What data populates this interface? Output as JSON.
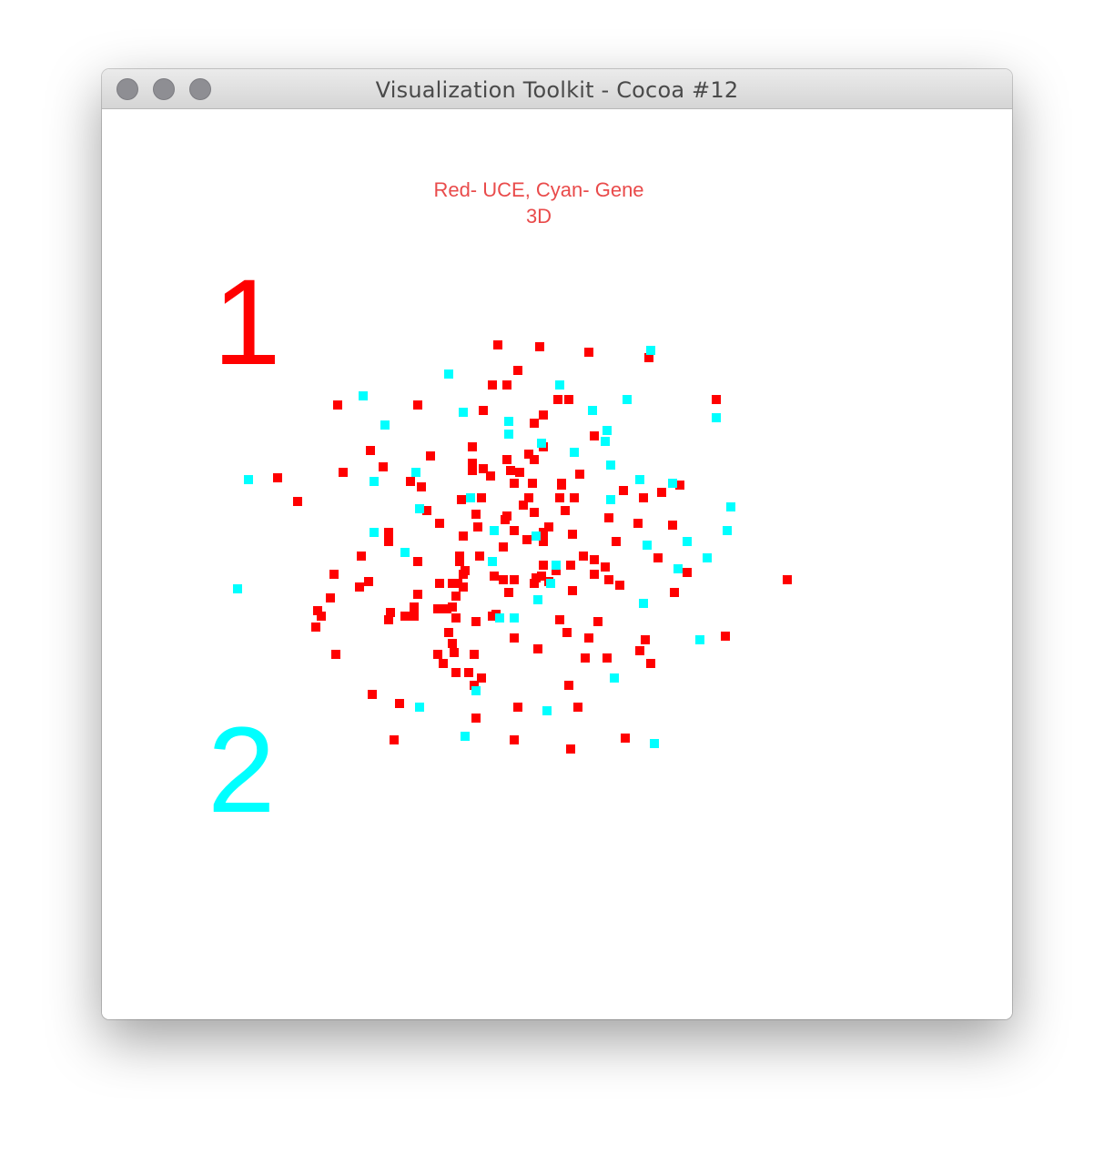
{
  "window": {
    "title": "Visualization Toolkit - Cocoa #12"
  },
  "labels": {
    "line1": "Red- UCE, Cyan- Gene",
    "line2": "3D",
    "label_one": "1",
    "label_two": "2"
  },
  "colors": {
    "uce": "#ff0000",
    "gene": "#00ffff",
    "caption": "#e94b4b"
  },
  "icons": {
    "close": "close-icon",
    "minimize": "minimize-icon",
    "zoom": "zoom-icon"
  },
  "chart_data": {
    "type": "scatter",
    "title": "",
    "xlabel": "",
    "ylabel": "",
    "xlim": [
      0,
      1000
    ],
    "ylim": [
      0,
      1000
    ],
    "grid": false,
    "series": [
      {
        "name": "UCE",
        "color": "#ff0000",
        "points": [
          [
            435,
            259
          ],
          [
            481,
            261
          ],
          [
            535,
            267
          ],
          [
            601,
            273
          ],
          [
            457,
            287
          ],
          [
            445,
            303
          ],
          [
            429,
            303
          ],
          [
            419,
            331
          ],
          [
            259,
            325
          ],
          [
            347,
            325
          ],
          [
            513,
            319
          ],
          [
            501,
            319
          ],
          [
            675,
            319
          ],
          [
            485,
            336
          ],
          [
            475,
            345
          ],
          [
            541,
            359
          ],
          [
            485,
            371
          ],
          [
            469,
            379
          ],
          [
            449,
            397
          ],
          [
            295,
            375
          ],
          [
            407,
            371
          ],
          [
            361,
            381
          ],
          [
            475,
            385
          ],
          [
            407,
            389
          ],
          [
            445,
            385
          ],
          [
            419,
            395
          ],
          [
            427,
            403
          ],
          [
            573,
            419
          ],
          [
            265,
            399
          ],
          [
            309,
            393
          ],
          [
            407,
            397
          ],
          [
            459,
            399
          ],
          [
            525,
            401
          ],
          [
            505,
            411
          ],
          [
            505,
            413
          ],
          [
            339,
            409
          ],
          [
            351,
            415
          ],
          [
            453,
            411
          ],
          [
            473,
            411
          ],
          [
            503,
            427
          ],
          [
            615,
            421
          ],
          [
            635,
            413
          ],
          [
            193,
            405
          ],
          [
            215,
            431
          ],
          [
            417,
            427
          ],
          [
            357,
            441
          ],
          [
            395,
            429
          ],
          [
            445,
            447
          ],
          [
            469,
            427
          ],
          [
            519,
            427
          ],
          [
            595,
            427
          ],
          [
            475,
            443
          ],
          [
            463,
            435
          ],
          [
            557,
            449
          ],
          [
            411,
            445
          ],
          [
            443,
            451
          ],
          [
            371,
            455
          ],
          [
            589,
            455
          ],
          [
            509,
            441
          ],
          [
            413,
            459
          ],
          [
            491,
            459
          ],
          [
            397,
            469
          ],
          [
            453,
            463
          ],
          [
            485,
            465
          ],
          [
            517,
            467
          ],
          [
            627,
            457
          ],
          [
            441,
            481
          ],
          [
            415,
            491
          ],
          [
            467,
            473
          ],
          [
            485,
            475
          ],
          [
            315,
            465
          ],
          [
            315,
            475
          ],
          [
            285,
            491
          ],
          [
            393,
            491
          ],
          [
            565,
            475
          ],
          [
            393,
            497
          ],
          [
            529,
            491
          ],
          [
            541,
            495
          ],
          [
            553,
            503
          ],
          [
            347,
            497
          ],
          [
            499,
            507
          ],
          [
            541,
            511
          ],
          [
            611,
            493
          ],
          [
            397,
            511
          ],
          [
            255,
            511
          ],
          [
            483,
            513
          ],
          [
            399,
            507
          ],
          [
            485,
            501
          ],
          [
            283,
            525
          ],
          [
            293,
            519
          ],
          [
            477,
            515
          ],
          [
            431,
            513
          ],
          [
            371,
            521
          ],
          [
            391,
            521
          ],
          [
            347,
            533
          ],
          [
            385,
            521
          ],
          [
            515,
            501
          ],
          [
            441,
            517
          ],
          [
            475,
            521
          ],
          [
            491,
            519
          ],
          [
            557,
            517
          ],
          [
            517,
            529
          ],
          [
            643,
            509
          ],
          [
            629,
            531
          ],
          [
            569,
            523
          ],
          [
            389,
            535
          ],
          [
            447,
            531
          ],
          [
            453,
            517
          ],
          [
            753,
            517
          ],
          [
            385,
            547
          ],
          [
            397,
            525
          ],
          [
            251,
            537
          ],
          [
            369,
            549
          ],
          [
            343,
            547
          ],
          [
            379,
            549
          ],
          [
            237,
            551
          ],
          [
            241,
            557
          ],
          [
            315,
            561
          ],
          [
            235,
            569
          ],
          [
            317,
            553
          ],
          [
            333,
            557
          ],
          [
            343,
            557
          ],
          [
            389,
            559
          ],
          [
            411,
            563
          ],
          [
            429,
            557
          ],
          [
            503,
            561
          ],
          [
            453,
            581
          ],
          [
            479,
            593
          ],
          [
            511,
            575
          ],
          [
            381,
            575
          ],
          [
            385,
            587
          ],
          [
            433,
            555
          ],
          [
            535,
            581
          ],
          [
            545,
            563
          ],
          [
            685,
            579
          ],
          [
            387,
            597
          ],
          [
            369,
            599
          ],
          [
            597,
            583
          ],
          [
            531,
            603
          ],
          [
            555,
            603
          ],
          [
            603,
            609
          ],
          [
            409,
            599
          ],
          [
            375,
            609
          ],
          [
            389,
            619
          ],
          [
            297,
            643
          ],
          [
            409,
            633
          ],
          [
            513,
            633
          ],
          [
            257,
            599
          ],
          [
            327,
            653
          ],
          [
            457,
            657
          ],
          [
            411,
            669
          ],
          [
            523,
            657
          ],
          [
            321,
            693
          ],
          [
            453,
            693
          ],
          [
            515,
            703
          ],
          [
            575,
            691
          ],
          [
            417,
            625
          ],
          [
            403,
            619
          ],
          [
            591,
            595
          ]
        ]
      },
      {
        "name": "Gene",
        "color": "#00ffff",
        "points": [
          [
            603,
            265
          ],
          [
            381,
            291
          ],
          [
            503,
            303
          ],
          [
            577,
            319
          ],
          [
            287,
            315
          ],
          [
            397,
            333
          ],
          [
            447,
            343
          ],
          [
            555,
            353
          ],
          [
            311,
            347
          ],
          [
            539,
            331
          ],
          [
            675,
            339
          ],
          [
            447,
            357
          ],
          [
            483,
            367
          ],
          [
            519,
            377
          ],
          [
            553,
            365
          ],
          [
            345,
            399
          ],
          [
            559,
            391
          ],
          [
            161,
            407
          ],
          [
            299,
            409
          ],
          [
            591,
            407
          ],
          [
            627,
            411
          ],
          [
            405,
            427
          ],
          [
            349,
            439
          ],
          [
            559,
            429
          ],
          [
            691,
            437
          ],
          [
            299,
            465
          ],
          [
            431,
            463
          ],
          [
            477,
            469
          ],
          [
            599,
            479
          ],
          [
            643,
            475
          ],
          [
            687,
            463
          ],
          [
            333,
            487
          ],
          [
            429,
            497
          ],
          [
            499,
            501
          ],
          [
            633,
            505
          ],
          [
            665,
            493
          ],
          [
            149,
            527
          ],
          [
            493,
            521
          ],
          [
            479,
            539
          ],
          [
            437,
            559
          ],
          [
            595,
            543
          ],
          [
            453,
            559
          ],
          [
            657,
            583
          ],
          [
            563,
            625
          ],
          [
            411,
            639
          ],
          [
            349,
            657
          ],
          [
            489,
            661
          ],
          [
            399,
            689
          ],
          [
            607,
            697
          ]
        ]
      }
    ]
  }
}
